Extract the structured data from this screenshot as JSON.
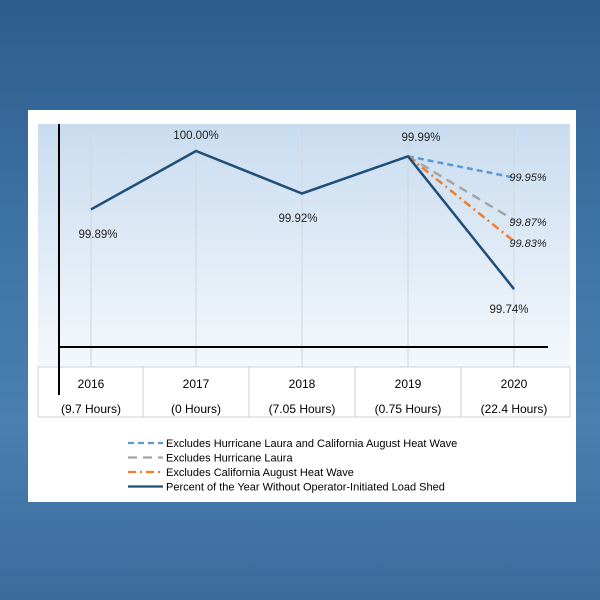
{
  "chart_data": {
    "type": "line",
    "categories": [
      "2016",
      "2017",
      "2018",
      "2019",
      "2020"
    ],
    "sublabels": [
      "(9.7 Hours)",
      "(0 Hours)",
      "(7.05 Hours)",
      "(0.75 Hours)",
      "(22.4 Hours)"
    ],
    "ylim": [
      99.63,
      100.05
    ],
    "grid": false,
    "legend_placement": "bottom",
    "series": [
      {
        "name": "Excludes Hurricane Laura and California August Heat Wave",
        "x": [
          "2019",
          "2020"
        ],
        "values": [
          99.99,
          99.95
        ],
        "labels": [
          "",
          "99.95%"
        ],
        "color": "#5b9bd5",
        "dash": "6,4",
        "italic": true
      },
      {
        "name": "Excludes Hurricane Laura",
        "x": [
          "2019",
          "2020"
        ],
        "values": [
          99.99,
          99.87
        ],
        "labels": [
          "",
          "99.87%"
        ],
        "color": "#a5a5a5",
        "dash": "9,6",
        "italic": true
      },
      {
        "name": "Excludes California August Heat Wave",
        "x": [
          "2019",
          "2020"
        ],
        "values": [
          99.99,
          99.83
        ],
        "labels": [
          "",
          "99.83%"
        ],
        "color": "#ed7d31",
        "dash": "8,4,2,4",
        "italic": true
      },
      {
        "name": "Percent of the Year Without Operator-Initiated Load Shed",
        "x": [
          "2016",
          "2017",
          "2018",
          "2019",
          "2020"
        ],
        "values": [
          99.89,
          100.0,
          99.92,
          99.99,
          99.74
        ],
        "labels": [
          "99.89%",
          "100.00%",
          "99.92%",
          "99.99%",
          "99.74%"
        ],
        "color": "#1f4e79",
        "dash": "",
        "italic": false
      }
    ]
  }
}
